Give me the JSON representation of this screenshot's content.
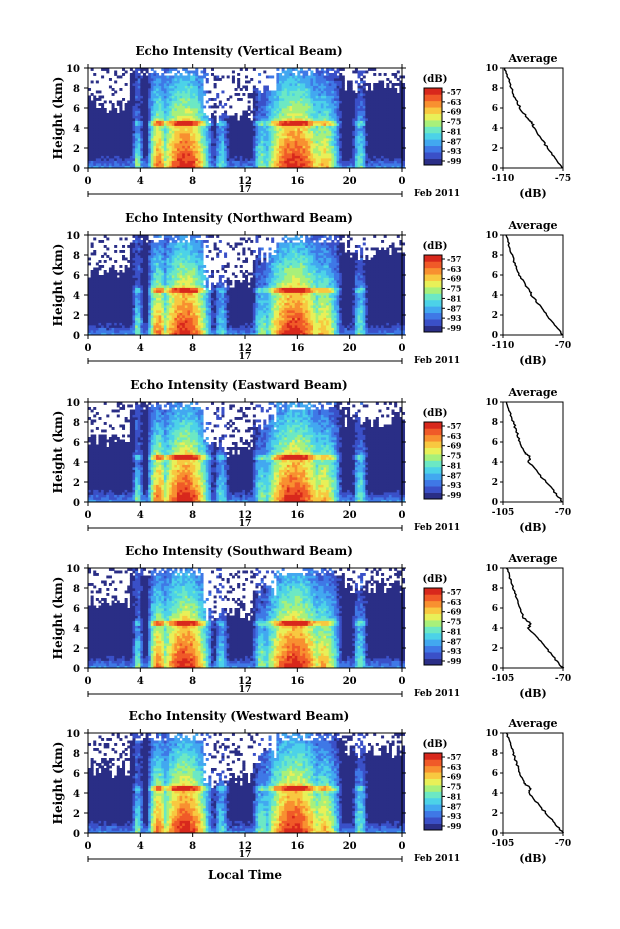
{
  "figure": {
    "date_label": "Feb 2011",
    "day_label": "17",
    "xlabel": "Local Time",
    "ylabel": "Height (km)",
    "colorbar_label": "(dB)",
    "avg_title": "Average",
    "avg_xlabel": "(dB)"
  },
  "colorbar": {
    "tick_labels": [
      "-57",
      "-63",
      "-69",
      "-75",
      "-81",
      "-87",
      "-93",
      "-99"
    ],
    "colors": [
      "#2a2e86",
      "#3a50c8",
      "#3f78e6",
      "#42a8f0",
      "#4cd2e8",
      "#6ce8c4",
      "#a8f07a",
      "#e8f058",
      "#f8c840",
      "#f89030",
      "#f05a28",
      "#d8281c"
    ]
  },
  "chart_data": [
    {
      "type": "heatmap",
      "title": "Echo Intensity (Vertical Beam)",
      "x_ticks": [
        "0",
        "4",
        "8",
        "12",
        "16",
        "20",
        "0"
      ],
      "xlim": [
        0,
        24
      ],
      "y_ticks": [
        "0",
        "2",
        "4",
        "6",
        "8",
        "10"
      ],
      "ylim": [
        0,
        10
      ],
      "zlim": [
        -99,
        -57
      ],
      "average": {
        "title": "Average",
        "xlabel": "(dB)",
        "xlim": [
          -110,
          -75
        ],
        "x_ticks": [
          "-110",
          "-75"
        ],
        "y_ticks": [
          "0",
          "2",
          "4",
          "6",
          "8",
          "10"
        ],
        "height": [
          0,
          1,
          2,
          3,
          4,
          4.5,
          5,
          6,
          7,
          8,
          9,
          10
        ],
        "value": [
          -75,
          -80,
          -84,
          -88,
          -92,
          -93,
          -96,
          -100,
          -103,
          -105,
          -107,
          -109
        ]
      }
    },
    {
      "type": "heatmap",
      "title": "Echo Intensity (Northward Beam)",
      "x_ticks": [
        "0",
        "4",
        "8",
        "12",
        "16",
        "20",
        "0"
      ],
      "xlim": [
        0,
        24
      ],
      "y_ticks": [
        "0",
        "2",
        "4",
        "6",
        "8",
        "10"
      ],
      "ylim": [
        0,
        10
      ],
      "zlim": [
        -99,
        -57
      ],
      "average": {
        "title": "Average",
        "xlabel": "(dB)",
        "xlim": [
          -110,
          -70
        ],
        "x_ticks": [
          "-110",
          "-70"
        ],
        "y_ticks": [
          "0",
          "2",
          "4",
          "6",
          "8",
          "10"
        ],
        "height": [
          0,
          1,
          2,
          3,
          4,
          4.5,
          5,
          6,
          7,
          8,
          9,
          10
        ],
        "value": [
          -70,
          -76,
          -81,
          -86,
          -91,
          -92,
          -95,
          -99,
          -102,
          -104,
          -106,
          -108
        ]
      }
    },
    {
      "type": "heatmap",
      "title": "Echo Intensity (Eastward Beam)",
      "x_ticks": [
        "0",
        "4",
        "8",
        "12",
        "16",
        "20",
        "0"
      ],
      "xlim": [
        0,
        24
      ],
      "y_ticks": [
        "0",
        "2",
        "4",
        "6",
        "8",
        "10"
      ],
      "ylim": [
        0,
        10
      ],
      "zlim": [
        -99,
        -57
      ],
      "average": {
        "title": "Average",
        "xlabel": "(dB)",
        "xlim": [
          -105,
          -70
        ],
        "x_ticks": [
          "-105",
          "-70"
        ],
        "y_ticks": [
          "0",
          "2",
          "4",
          "6",
          "8",
          "10"
        ],
        "height": [
          0,
          1,
          2,
          3,
          4,
          4.5,
          5,
          6,
          7,
          8,
          9,
          10
        ],
        "value": [
          -70,
          -75,
          -80,
          -85,
          -90,
          -89,
          -93,
          -95,
          -97,
          -99,
          -101,
          -103
        ]
      }
    },
    {
      "type": "heatmap",
      "title": "Echo Intensity (Southward Beam)",
      "x_ticks": [
        "0",
        "4",
        "8",
        "12",
        "16",
        "20",
        "0"
      ],
      "xlim": [
        0,
        24
      ],
      "y_ticks": [
        "0",
        "2",
        "4",
        "6",
        "8",
        "10"
      ],
      "ylim": [
        0,
        10
      ],
      "zlim": [
        -99,
        -57
      ],
      "average": {
        "title": "Average",
        "xlabel": "(dB)",
        "xlim": [
          -105,
          -70
        ],
        "x_ticks": [
          "-105",
          "-70"
        ],
        "y_ticks": [
          "0",
          "2",
          "4",
          "6",
          "8",
          "10"
        ],
        "height": [
          0,
          1,
          2,
          3,
          4,
          4.5,
          5,
          6,
          7,
          8,
          9,
          10
        ],
        "value": [
          -70,
          -75,
          -80,
          -85,
          -90,
          -89,
          -93,
          -95,
          -97,
          -99,
          -101,
          -103
        ]
      }
    },
    {
      "type": "heatmap",
      "title": "Echo Intensity (Westward Beam)",
      "x_ticks": [
        "0",
        "4",
        "8",
        "12",
        "16",
        "20",
        "0"
      ],
      "xlim": [
        0,
        24
      ],
      "y_ticks": [
        "0",
        "2",
        "4",
        "6",
        "8",
        "10"
      ],
      "ylim": [
        0,
        10
      ],
      "zlim": [
        -99,
        -57
      ],
      "average": {
        "title": "Average",
        "xlabel": "(dB)",
        "xlim": [
          -105,
          -70
        ],
        "x_ticks": [
          "-105",
          "-70"
        ],
        "y_ticks": [
          "0",
          "2",
          "4",
          "6",
          "8",
          "10"
        ],
        "height": [
          0,
          1,
          2,
          3,
          4,
          4.5,
          5,
          6,
          7,
          8,
          9,
          10
        ],
        "value": [
          -70,
          -75,
          -80,
          -85,
          -90,
          -89,
          -93,
          -95,
          -97,
          -99,
          -101,
          -103
        ]
      }
    }
  ]
}
